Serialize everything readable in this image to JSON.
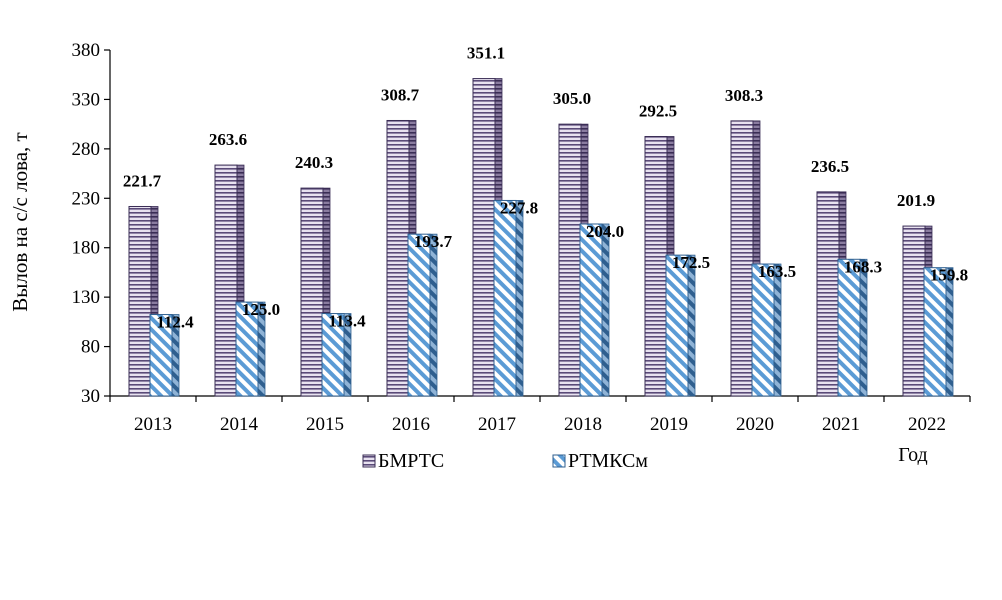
{
  "chart_data": {
    "type": "bar",
    "categories": [
      "2013",
      "2014",
      "2015",
      "2016",
      "2017",
      "2018",
      "2019",
      "2020",
      "2021",
      "2022"
    ],
    "series": [
      {
        "name": "БМРТС",
        "values": [
          221.7,
          263.6,
          240.3,
          308.7,
          351.1,
          305.0,
          292.5,
          308.3,
          236.5,
          201.9
        ],
        "value_labels": [
          "221.7",
          "263.6",
          "240.3",
          "308.7",
          "351.1",
          "305.0",
          "292.5",
          "308.3",
          "236.5",
          "201.9"
        ],
        "color": "#e8e2f0",
        "stripe_color": "#5a4a78"
      },
      {
        "name": "РТМКСм",
        "values": [
          112.4,
          125.0,
          113.4,
          193.7,
          227.8,
          204.0,
          172.5,
          163.5,
          168.3,
          159.8
        ],
        "value_labels": [
          "112.4",
          "125.0",
          "113.4",
          "193.7",
          "227.8",
          "204.0",
          "172.5",
          "163.5",
          "168.3",
          "159.8"
        ],
        "color": "#dbeaf7",
        "stripe_color": "#5b9bd5"
      }
    ],
    "title": "",
    "xlabel": "Год",
    "ylabel": "Вылов на с/с лова, т",
    "ylim": [
      30,
      380
    ],
    "yticks": [
      "30",
      "80",
      "130",
      "180",
      "230",
      "280",
      "330",
      "380"
    ],
    "grid": false,
    "legend": "bottom"
  }
}
